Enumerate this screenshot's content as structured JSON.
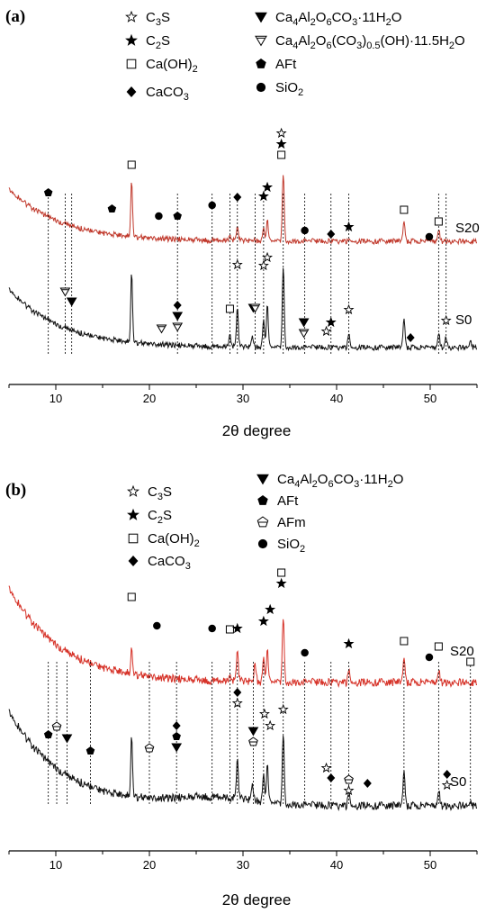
{
  "chart_data": [
    {
      "type": "line",
      "panel_label": "(a)",
      "xlabel": "2θ degree",
      "xlim": [
        5,
        55
      ],
      "xticks": [
        10,
        20,
        30,
        40,
        50
      ],
      "ytick_labels": false,
      "legend": {
        "placement": "top",
        "entries": [
          {
            "symbol": "star-open",
            "label": "C3S",
            "base": "C",
            "parts": [
              [
                "3",
                "sub"
              ],
              [
                "S",
                ""
              ]
            ]
          },
          {
            "symbol": "star-filled",
            "label": "C2S",
            "base": "C",
            "parts": [
              [
                "2",
                "sub"
              ],
              [
                "S",
                ""
              ]
            ]
          },
          {
            "symbol": "square-open",
            "label": "Ca(OH)2",
            "base": "Ca(OH)",
            "parts": [
              [
                "2",
                "sub"
              ]
            ]
          },
          {
            "symbol": "diamond",
            "label": "CaCO3",
            "base": "CaCO",
            "parts": [
              [
                "3",
                "sub"
              ]
            ]
          },
          {
            "symbol": "tri-down-filled",
            "label": "Ca4Al2O6CO3·11H2O",
            "base": "Ca",
            "parts": [
              [
                "4",
                "sub"
              ],
              [
                "Al",
                ""
              ],
              [
                "2",
                "sub"
              ],
              [
                "O",
                ""
              ],
              [
                "6",
                "sub"
              ],
              [
                "CO",
                ""
              ],
              [
                "3",
                "sub"
              ],
              [
                "·11H",
                ""
              ],
              [
                "2",
                "sub"
              ],
              [
                "O",
                ""
              ]
            ]
          },
          {
            "symbol": "tri-down-open",
            "label": "Ca4Al2O6(CO3)0.5(OH)·11.5H2O",
            "base": "Ca",
            "parts": [
              [
                "4",
                "sub"
              ],
              [
                "Al",
                ""
              ],
              [
                "2",
                "sub"
              ],
              [
                "O",
                ""
              ],
              [
                "6",
                "sub"
              ],
              [
                "(CO",
                ""
              ],
              [
                "3",
                "sub"
              ],
              [
                ")",
                ""
              ],
              [
                "0.5",
                "sub"
              ],
              [
                "(OH)·11.5H",
                ""
              ],
              [
                "2",
                "sub"
              ],
              [
                "O",
                ""
              ]
            ]
          },
          {
            "symbol": "pentagon",
            "label": "AFt",
            "base": "AFt",
            "parts": []
          },
          {
            "symbol": "circle",
            "label": "SiO2",
            "base": "SiO",
            "parts": [
              [
                "2",
                "sub"
              ]
            ]
          }
        ]
      },
      "series": [
        {
          "name": "S20",
          "color": "#c0382b",
          "peaks": [
            [
              18.1,
              62
            ],
            [
              29.4,
              18
            ],
            [
              32.2,
              14
            ],
            [
              32.6,
              22
            ],
            [
              34.3,
              75
            ],
            [
              47.2,
              24
            ],
            [
              50.9,
              15
            ],
            [
              28.6,
              8
            ]
          ]
        },
        {
          "name": "S0",
          "color": "#111111",
          "peaks": [
            [
              18.1,
              78
            ],
            [
              29.4,
              46
            ],
            [
              32.2,
              30
            ],
            [
              32.6,
              46
            ],
            [
              34.3,
              90
            ],
            [
              47.2,
              34
            ],
            [
              50.9,
              18
            ],
            [
              51.7,
              12
            ],
            [
              28.6,
              16
            ],
            [
              31.0,
              12
            ],
            [
              41.3,
              14
            ],
            [
              54.3,
              10
            ]
          ]
        }
      ],
      "s20_markers": [
        {
          "x": 9.2,
          "symbol": "pentagon"
        },
        {
          "x": 16.0,
          "symbol": "pentagon"
        },
        {
          "x": 18.1,
          "symbol": "square-open"
        },
        {
          "x": 21.0,
          "symbol": "circle"
        },
        {
          "x": 23.0,
          "symbol": "pentagon"
        },
        {
          "x": 26.7,
          "symbol": "circle"
        },
        {
          "x": 29.4,
          "symbol": "diamond"
        },
        {
          "x": 32.2,
          "symbol": "star-filled"
        },
        {
          "x": 32.6,
          "symbol": "star-filled"
        },
        {
          "x": 34.1,
          "symbol": "square-open"
        },
        {
          "x": 34.1,
          "symbol": "star-filled"
        },
        {
          "x": 34.1,
          "symbol": "star-open"
        },
        {
          "x": 36.6,
          "symbol": "circle"
        },
        {
          "x": 39.4,
          "symbol": "diamond"
        },
        {
          "x": 41.3,
          "symbol": "star-filled"
        },
        {
          "x": 47.2,
          "symbol": "square-open"
        },
        {
          "x": 49.9,
          "symbol": "circle"
        },
        {
          "x": 50.9,
          "symbol": "square-open"
        }
      ],
      "s0_markers": [
        {
          "x": 11.0,
          "symbol": "tri-down-open"
        },
        {
          "x": 11.7,
          "symbol": "tri-down-filled"
        },
        {
          "x": 21.3,
          "symbol": "tri-down-open"
        },
        {
          "x": 23.0,
          "symbol": "tri-down-open"
        },
        {
          "x": 23.0,
          "symbol": "tri-down-filled"
        },
        {
          "x": 23.0,
          "symbol": "diamond"
        },
        {
          "x": 28.6,
          "symbol": "square-open"
        },
        {
          "x": 29.4,
          "symbol": "star-open"
        },
        {
          "x": 31.1,
          "symbol": "tri-down-filled"
        },
        {
          "x": 31.3,
          "symbol": "tri-down-open"
        },
        {
          "x": 32.2,
          "symbol": "star-open"
        },
        {
          "x": 32.6,
          "symbol": "star-open"
        },
        {
          "x": 36.5,
          "symbol": "tri-down-open"
        },
        {
          "x": 36.5,
          "symbol": "tri-down-filled"
        },
        {
          "x": 38.9,
          "symbol": "star-open"
        },
        {
          "x": 39.4,
          "symbol": "star-filled"
        },
        {
          "x": 41.3,
          "symbol": "star-open"
        },
        {
          "x": 47.9,
          "symbol": "diamond"
        },
        {
          "x": 51.7,
          "symbol": "star-open"
        }
      ],
      "drop_lines": [
        9.2,
        11.0,
        11.7,
        23.0,
        26.7,
        28.6,
        29.4,
        31.3,
        32.2,
        34.3,
        36.6,
        39.4,
        41.3,
        50.9,
        51.7
      ]
    },
    {
      "type": "line",
      "panel_label": "(b)",
      "xlabel": "2θ degree",
      "xlim": [
        5,
        55
      ],
      "xticks": [
        10,
        20,
        30,
        40,
        50
      ],
      "ytick_labels": false,
      "legend": {
        "placement": "top",
        "entries": [
          {
            "symbol": "star-open",
            "label": "C3S",
            "base": "C",
            "parts": [
              [
                "3",
                "sub"
              ],
              [
                "S",
                ""
              ]
            ]
          },
          {
            "symbol": "star-filled",
            "label": "C2S",
            "base": "C",
            "parts": [
              [
                "2",
                "sub"
              ],
              [
                "S",
                ""
              ]
            ]
          },
          {
            "symbol": "square-open",
            "label": "Ca(OH)2",
            "base": "Ca(OH)",
            "parts": [
              [
                "2",
                "sub"
              ]
            ]
          },
          {
            "symbol": "diamond",
            "label": "CaCO3",
            "base": "CaCO",
            "parts": [
              [
                "3",
                "sub"
              ]
            ]
          },
          {
            "symbol": "tri-down-filled",
            "label": "Ca4Al2O6CO3·11H2O",
            "base": "Ca",
            "parts": [
              [
                "4",
                "sub"
              ],
              [
                "Al",
                ""
              ],
              [
                "2",
                "sub"
              ],
              [
                "O",
                ""
              ],
              [
                "6",
                "sub"
              ],
              [
                "CO",
                ""
              ],
              [
                "3",
                "sub"
              ],
              [
                "·11H",
                ""
              ],
              [
                "2",
                "sub"
              ],
              [
                "O",
                ""
              ]
            ]
          },
          {
            "symbol": "pentagon",
            "label": "AFt",
            "base": "AFt",
            "parts": []
          },
          {
            "symbol": "afm",
            "label": "AFm",
            "base": "AFm",
            "parts": []
          },
          {
            "symbol": "circle",
            "label": "SiO2",
            "base": "SiO",
            "parts": [
              [
                "2",
                "sub"
              ]
            ]
          }
        ]
      },
      "series": [
        {
          "name": "S20",
          "color": "#d63228",
          "peaks": [
            [
              18.1,
              30
            ],
            [
              29.4,
              38
            ],
            [
              31.3,
              20
            ],
            [
              32.2,
              26
            ],
            [
              32.6,
              34
            ],
            [
              34.3,
              72
            ],
            [
              41.3,
              12
            ],
            [
              47.2,
              30
            ],
            [
              50.9,
              16
            ],
            [
              28.6,
              10
            ]
          ]
        },
        {
          "name": "S0",
          "color": "#111111",
          "peaks": [
            [
              18.1,
              68
            ],
            [
              29.4,
              48
            ],
            [
              31.0,
              18
            ],
            [
              32.2,
              30
            ],
            [
              32.6,
              40
            ],
            [
              34.3,
              78
            ],
            [
              41.3,
              14
            ],
            [
              47.2,
              42
            ],
            [
              50.9,
              20
            ],
            [
              54.3,
              8
            ]
          ]
        }
      ],
      "s20_markers": [
        {
          "x": 18.1,
          "symbol": "square-open"
        },
        {
          "x": 20.8,
          "symbol": "circle"
        },
        {
          "x": 26.7,
          "symbol": "circle"
        },
        {
          "x": 28.6,
          "symbol": "square-open"
        },
        {
          "x": 29.4,
          "symbol": "star-filled"
        },
        {
          "x": 32.2,
          "symbol": "star-filled"
        },
        {
          "x": 32.9,
          "symbol": "star-filled"
        },
        {
          "x": 34.1,
          "symbol": "star-filled"
        },
        {
          "x": 34.1,
          "symbol": "square-open"
        },
        {
          "x": 36.6,
          "symbol": "circle"
        },
        {
          "x": 41.3,
          "symbol": "star-filled"
        },
        {
          "x": 47.2,
          "symbol": "square-open"
        },
        {
          "x": 49.9,
          "symbol": "circle"
        },
        {
          "x": 50.9,
          "symbol": "square-open"
        },
        {
          "x": 54.3,
          "symbol": "square-open"
        }
      ],
      "s0_markers": [
        {
          "x": 9.2,
          "symbol": "pentagon"
        },
        {
          "x": 10.1,
          "symbol": "afm"
        },
        {
          "x": 11.2,
          "symbol": "tri-down-filled"
        },
        {
          "x": 13.7,
          "symbol": "pentagon"
        },
        {
          "x": 20.0,
          "symbol": "afm"
        },
        {
          "x": 22.9,
          "symbol": "tri-down-filled"
        },
        {
          "x": 22.9,
          "symbol": "pentagon"
        },
        {
          "x": 22.9,
          "symbol": "diamond"
        },
        {
          "x": 29.4,
          "symbol": "star-open"
        },
        {
          "x": 29.4,
          "symbol": "diamond"
        },
        {
          "x": 31.1,
          "symbol": "afm"
        },
        {
          "x": 31.1,
          "symbol": "tri-down-filled"
        },
        {
          "x": 32.3,
          "symbol": "star-open"
        },
        {
          "x": 32.9,
          "symbol": "star-open"
        },
        {
          "x": 34.3,
          "symbol": "star-open"
        },
        {
          "x": 38.9,
          "symbol": "star-open"
        },
        {
          "x": 39.4,
          "symbol": "diamond"
        },
        {
          "x": 41.3,
          "symbol": "star-open"
        },
        {
          "x": 41.3,
          "symbol": "afm"
        },
        {
          "x": 43.3,
          "symbol": "diamond"
        },
        {
          "x": 51.8,
          "symbol": "star-open"
        },
        {
          "x": 51.8,
          "symbol": "diamond"
        }
      ],
      "drop_lines": [
        9.2,
        10.1,
        11.2,
        13.7,
        20.0,
        22.9,
        26.7,
        28.6,
        29.4,
        31.1,
        32.2,
        34.3,
        36.6,
        39.4,
        41.3,
        47.2,
        50.9,
        54.3
      ]
    }
  ]
}
